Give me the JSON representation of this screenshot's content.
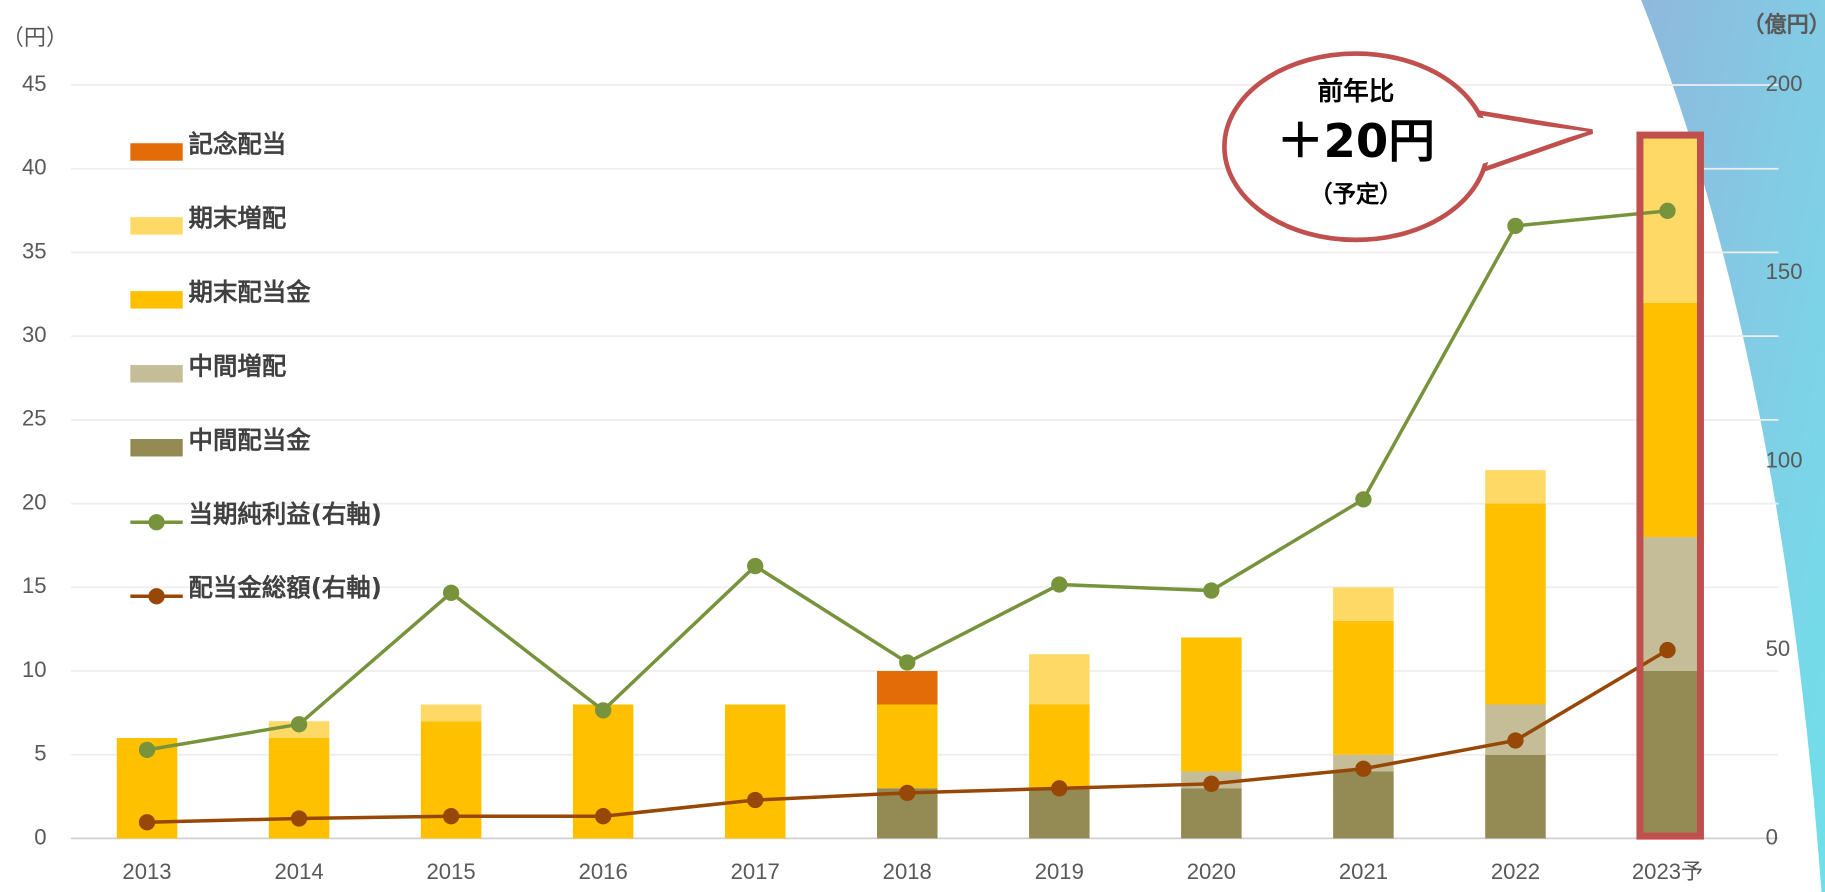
{
  "chart_data": {
    "type": "bar",
    "ylabel": "（円）",
    "y2label": "（億円）",
    "categories": [
      "2013",
      "2014",
      "2015",
      "2016",
      "2017",
      "2018",
      "2019",
      "2020",
      "2021",
      "2022",
      "2023予"
    ],
    "series": [
      {
        "name": "中間配当金",
        "type": "bar",
        "color": "#948a54",
        "values": [
          0,
          0,
          0,
          0,
          0,
          3,
          3,
          3,
          4,
          5,
          10
        ]
      },
      {
        "name": "中間増配",
        "type": "bar",
        "color": "#c4bd97",
        "values": [
          0,
          0,
          0,
          0,
          0,
          0,
          0,
          1,
          1,
          3,
          8
        ]
      },
      {
        "name": "期末配当金",
        "type": "bar",
        "color": "#ffc000",
        "values": [
          6,
          6,
          7,
          8,
          8,
          5,
          5,
          8,
          8,
          12,
          14
        ]
      },
      {
        "name": "期末増配",
        "type": "bar",
        "color": "#ffd966",
        "values": [
          0,
          1,
          1,
          0,
          0,
          0,
          3,
          0,
          2,
          2,
          10
        ]
      },
      {
        "name": "記念配当",
        "type": "bar",
        "color": "#e36c09",
        "values": [
          0,
          0,
          0,
          0,
          0,
          2,
          0,
          0,
          0,
          0,
          0
        ]
      },
      {
        "name": "当期純利益(右軸)",
        "type": "line",
        "axis": "y2",
        "color": "#77933c",
        "values": [
          23.5,
          30.3,
          65.2,
          34,
          72.3,
          46.7,
          67.4,
          65.8,
          90,
          162.6,
          166.6
        ]
      },
      {
        "name": "配当金総額(右軸)",
        "type": "line",
        "axis": "y2",
        "color": "#974706",
        "values": [
          4.3,
          5.3,
          5.9,
          5.9,
          10.2,
          12.1,
          13.3,
          14.5,
          18.5,
          26,
          50
        ]
      }
    ],
    "ylim": [
      0,
      45
    ],
    "yticks": [
      0,
      5,
      10,
      15,
      20,
      25,
      30,
      35,
      40,
      45
    ],
    "y2lim": [
      0,
      200
    ],
    "y2ticks": [
      0,
      50,
      100,
      150,
      200
    ],
    "grid": true,
    "callout": [
      "前年比",
      "＋20円",
      "（予定）"
    ]
  }
}
